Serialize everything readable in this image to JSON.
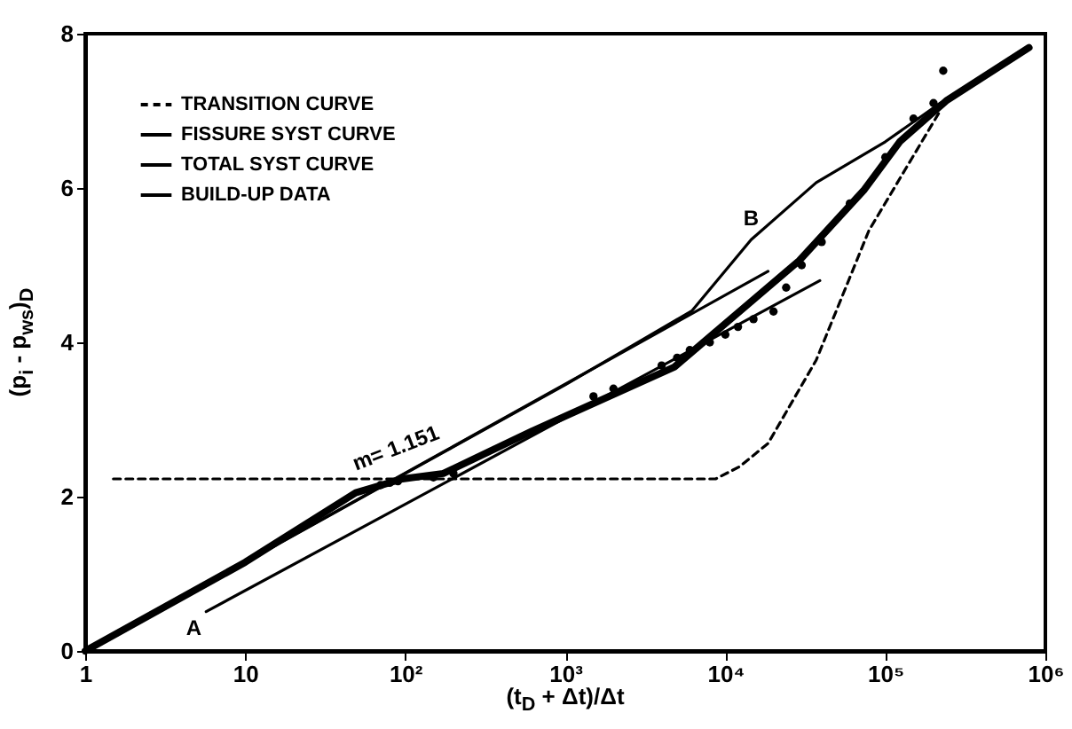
{
  "chart_data": {
    "type": "line",
    "xlabel": "(t$_{D}$ + Δt)/Δt",
    "ylabel": "(p$_{i}$ - p$_{ws}$)$_{D}$",
    "log": "x",
    "xlim": [
      1,
      1000000
    ],
    "ylim": [
      0,
      8
    ],
    "xticks": [
      1,
      10,
      {
        "value": 100,
        "label": "10²"
      },
      {
        "value": 1000,
        "label": "10³"
      },
      {
        "value": 10000,
        "label": "10⁴"
      },
      {
        "value": 100000,
        "label": "10⁵"
      },
      {
        "value": 1000000,
        "label": "10⁶"
      }
    ],
    "yticks": [
      0,
      2,
      4,
      6,
      8
    ],
    "grid": false,
    "legend": "top left",
    "series": [
      {
        "name": "TRANSITION CURVE",
        "color": "#000000",
        "line_style": "dashed",
        "x": [
          1.5,
          100,
          1000,
          8700,
          12300,
          18500,
          37000,
          79000,
          220000
        ],
        "values": [
          2.23,
          2.23,
          2.23,
          2.23,
          2.39,
          2.69,
          3.77,
          5.45,
          7.0
        ]
      },
      {
        "name": "FISSURE SYST CURVE",
        "color": "#000000",
        "line_style": "solid",
        "x": [
          5.7,
          39000
        ],
        "values": [
          0.51,
          4.8
        ]
      },
      {
        "name": "TOTAL SYST CURVE",
        "color": "#000000",
        "line_style": "solid",
        "x": [
          1,
          100,
          1000,
          6200,
          14500,
          37000,
          100000,
          220000
        ],
        "values": [
          0,
          2.3,
          3.45,
          4.41,
          5.33,
          6.07,
          6.6,
          7.1
        ]
      },
      {
        "color": "#000000",
        "line_style": "solid",
        "x": [
          1,
          18500
        ],
        "values": [
          0,
          4.92
        ]
      },
      {
        "color": "#000000",
        "line_style": "solid",
        "x": [
          1,
          10,
          49,
          96,
          173,
          620,
          4800,
          29000,
          74000,
          123000,
          240000,
          790000
        ],
        "values": [
          0,
          1.15,
          2.05,
          2.23,
          2.3,
          2.85,
          3.68,
          5.06,
          5.98,
          6.6,
          7.13,
          7.82
        ]
      },
      {
        "name": "BUILD-UP DATA",
        "type": "scatter",
        "color": "#000000",
        "x": [
          70,
          80,
          90,
          150,
          200,
          1500,
          2000,
          4000,
          5000,
          6000,
          8000,
          10000,
          12000,
          15000,
          20000,
          24000,
          30000,
          40000,
          60000,
          100000,
          150000,
          200000,
          230000
        ],
        "values": [
          2.15,
          2.18,
          2.2,
          2.25,
          2.3,
          3.3,
          3.4,
          3.7,
          3.8,
          3.9,
          4.0,
          4.1,
          4.2,
          4.3,
          4.4,
          4.71,
          5.0,
          5.3,
          5.8,
          6.4,
          6.9,
          7.1,
          7.52
        ]
      }
    ],
    "annotations": [
      {
        "text": "A",
        "x": 5.7,
        "y": 0.51
      },
      {
        "text": "B",
        "x": 14500,
        "y": 5.33
      },
      {
        "text": "m= 1.151",
        "x": 100,
        "y": 2.31
      }
    ]
  }
}
